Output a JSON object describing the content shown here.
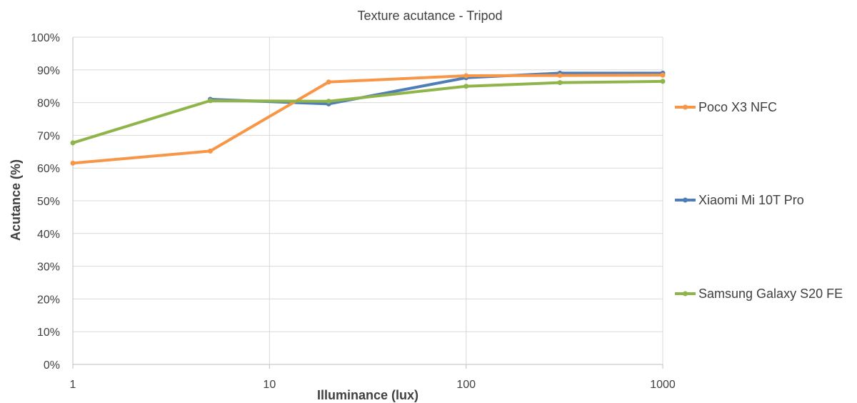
{
  "chart_data": {
    "type": "line",
    "title": "Texture acutance - Tripod",
    "xlabel": "Illuminance (lux)",
    "ylabel": "Acutance (%)",
    "xscale": "log",
    "xlim": [
      1,
      1000
    ],
    "ylim": [
      0,
      100
    ],
    "x_ticks": [
      1,
      10,
      100,
      1000
    ],
    "x_tick_labels": [
      "1",
      "10",
      "100",
      "1000"
    ],
    "y_ticks": [
      0,
      10,
      20,
      30,
      40,
      50,
      60,
      70,
      80,
      90,
      100
    ],
    "y_tick_labels": [
      "0%",
      "10%",
      "20%",
      "30%",
      "40%",
      "50%",
      "60%",
      "70%",
      "80%",
      "90%",
      "100%"
    ],
    "grid": true,
    "legend_position": "right",
    "x": [
      1,
      5,
      20,
      100,
      300,
      1000
    ],
    "series": [
      {
        "name": "Xiaomi Mi 10T Pro",
        "color": "#4f7db8",
        "values": [
          null,
          81.0,
          79.6,
          87.6,
          89.0,
          89.0
        ]
      },
      {
        "name": "Poco X3 NFC",
        "color": "#f79646",
        "values": [
          61.5,
          65.2,
          86.3,
          88.2,
          88.3,
          88.4
        ]
      },
      {
        "name": "Samsung Galaxy S20 FE",
        "color": "#8fb54a",
        "values": [
          67.7,
          80.6,
          80.4,
          85.0,
          86.1,
          86.5
        ]
      }
    ],
    "legend_order": [
      1,
      0,
      2
    ]
  }
}
